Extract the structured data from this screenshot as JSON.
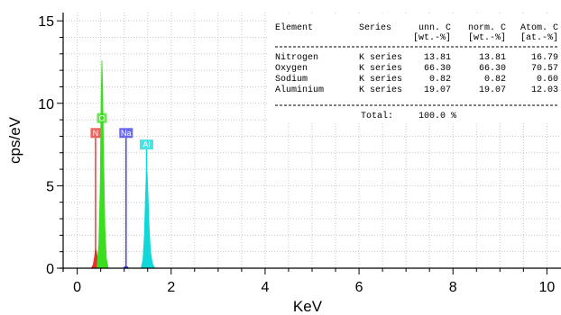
{
  "chart_data": {
    "type": "area",
    "title": "",
    "xlabel": "KeV",
    "ylabel": "cps/eV",
    "xlim": [
      -0.3,
      10.3
    ],
    "ylim": [
      0,
      15.5
    ],
    "xticks": [
      "0",
      "2",
      "4",
      "6",
      "8",
      "10"
    ],
    "xtick_values": [
      0,
      2,
      4,
      6,
      8,
      10
    ],
    "yticks": [
      "0",
      "5",
      "10",
      "15"
    ],
    "ytick_values": [
      0,
      5,
      10,
      15
    ],
    "grid": true,
    "grid_style": "dotted",
    "series": [
      {
        "label": "N",
        "color": "#e8302c",
        "line_height": 7.9,
        "x": [
          0.3,
          0.34,
          0.37,
          0.39,
          0.41,
          0.43,
          0.46,
          0.5
        ],
        "y": [
          0,
          0.2,
          0.7,
          1.2,
          1.0,
          0.6,
          0.2,
          0
        ]
      },
      {
        "label": "O",
        "color": "#3cdc1e",
        "line_height": 8.8,
        "x": [
          0.42,
          0.46,
          0.49,
          0.51,
          0.525,
          0.54,
          0.56,
          0.59,
          0.62,
          0.66
        ],
        "y": [
          0,
          1.5,
          5.0,
          10.5,
          12.6,
          11.2,
          7.0,
          2.5,
          0.6,
          0
        ]
      },
      {
        "label": "Na",
        "color": "#3a3ae6",
        "line_height": 7.9,
        "x": [
          0.98,
          1.01,
          1.04,
          1.07,
          1.1
        ],
        "y": [
          0,
          0.08,
          0.12,
          0.08,
          0
        ]
      },
      {
        "label": "Al",
        "color": "#10d8d8",
        "line_height": 7.2,
        "x": [
          1.36,
          1.4,
          1.43,
          1.455,
          1.475,
          1.49,
          1.51,
          1.53,
          1.56,
          1.6,
          1.65
        ],
        "y": [
          0,
          0.5,
          2.0,
          4.5,
          6.0,
          5.7,
          4.2,
          2.5,
          1.0,
          0.3,
          0
        ]
      }
    ]
  },
  "table": {
    "headers": [
      {
        "line1": "Element",
        "line2": ""
      },
      {
        "line1": "Series",
        "line2": ""
      },
      {
        "line1": "unn. C",
        "line2": "[wt.-%]"
      },
      {
        "line1": "norm. C",
        "line2": "[wt.-%]"
      },
      {
        "line1": "Atom. C",
        "line2": "[at.-%]"
      }
    ],
    "rows": [
      [
        "Nitrogen",
        "K series",
        "13.81",
        "13.81",
        "16.79"
      ],
      [
        "Oxygen",
        "K series",
        "66.30",
        "66.30",
        "70.57"
      ],
      [
        "Sodium",
        "K series",
        "0.82",
        "0.82",
        "0.60"
      ],
      [
        "Aluminium",
        "K series",
        "19.07",
        "19.07",
        "12.03"
      ]
    ],
    "total_label": "Total:",
    "total_value": "100.0 %"
  }
}
